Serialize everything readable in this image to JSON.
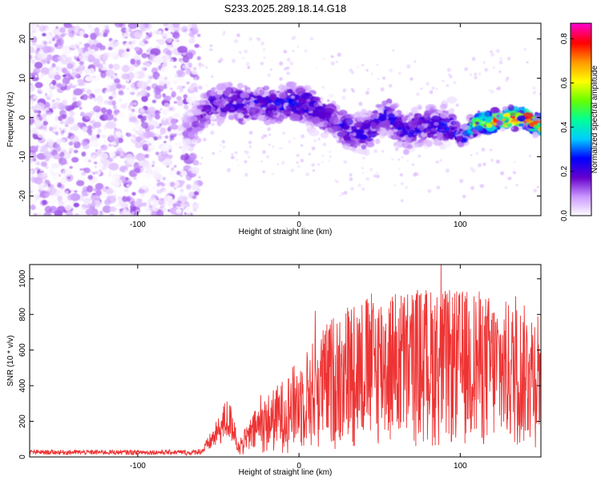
{
  "title": "S233.2025.289.18.14.G18",
  "chart_data": [
    {
      "type": "heatmap",
      "xlabel": "Height of straight line (km)",
      "ylabel": "Frequency (Hz)",
      "xlim": [
        -167,
        150
      ],
      "ylim": [
        -25,
        24
      ],
      "xticks": [
        -100,
        0,
        100
      ],
      "yticks": [
        -20,
        -10,
        0,
        10,
        20
      ],
      "colorbar": {
        "label": "Normalized spectral amplitude",
        "range": [
          0.0,
          0.87
        ],
        "ticks": [
          0.0,
          0.2,
          0.4,
          0.6,
          0.8
        ],
        "colors": [
          "#ffffff",
          "#cc99ff",
          "#6600cc",
          "#0000ff",
          "#00ccff",
          "#00ff99",
          "#66ff00",
          "#ffff00",
          "#ff9900",
          "#ff0000",
          "#ff00cc"
        ]
      },
      "ridge": {
        "x": [
          -67,
          -55,
          -45,
          -35,
          -25,
          -15,
          -5,
          5,
          15,
          25,
          35,
          45,
          55,
          65,
          75,
          85,
          95,
          100,
          105,
          110,
          120,
          130,
          140,
          148
        ],
        "freq": [
          -3,
          3,
          4,
          3,
          4,
          3,
          4,
          3,
          1,
          -2,
          -4,
          -3,
          1,
          -4,
          -2,
          -2,
          -2,
          -5,
          -3,
          -2,
          -1,
          0,
          0,
          -2
        ],
        "amplitude": [
          0.12,
          0.2,
          0.22,
          0.25,
          0.25,
          0.24,
          0.26,
          0.24,
          0.22,
          0.22,
          0.24,
          0.24,
          0.23,
          0.22,
          0.23,
          0.24,
          0.25,
          0.3,
          0.45,
          0.6,
          0.7,
          0.78,
          0.82,
          0.7
        ]
      }
    },
    {
      "type": "line",
      "xlabel": "Height of straight line (km)",
      "ylabel": "SNR (10 * v/v)",
      "xlim": [
        -167,
        150
      ],
      "ylim": [
        0,
        1080
      ],
      "xticks": [
        -100,
        0,
        100
      ],
      "yticks": [
        0,
        200,
        400,
        600,
        800,
        1000
      ],
      "color": "#ee3333",
      "envelope": {
        "x": [
          -167,
          -70,
          -60,
          -50,
          -45,
          -40,
          -38,
          -35,
          -25,
          -10,
          0,
          10,
          20,
          30,
          40,
          50,
          60,
          70,
          80,
          90,
          100,
          110,
          120,
          130,
          140,
          150
        ],
        "y": [
          25,
          25,
          40,
          170,
          260,
          200,
          60,
          80,
          180,
          260,
          330,
          400,
          470,
          520,
          540,
          560,
          560,
          570,
          570,
          560,
          560,
          560,
          540,
          520,
          510,
          520
        ]
      }
    }
  ]
}
